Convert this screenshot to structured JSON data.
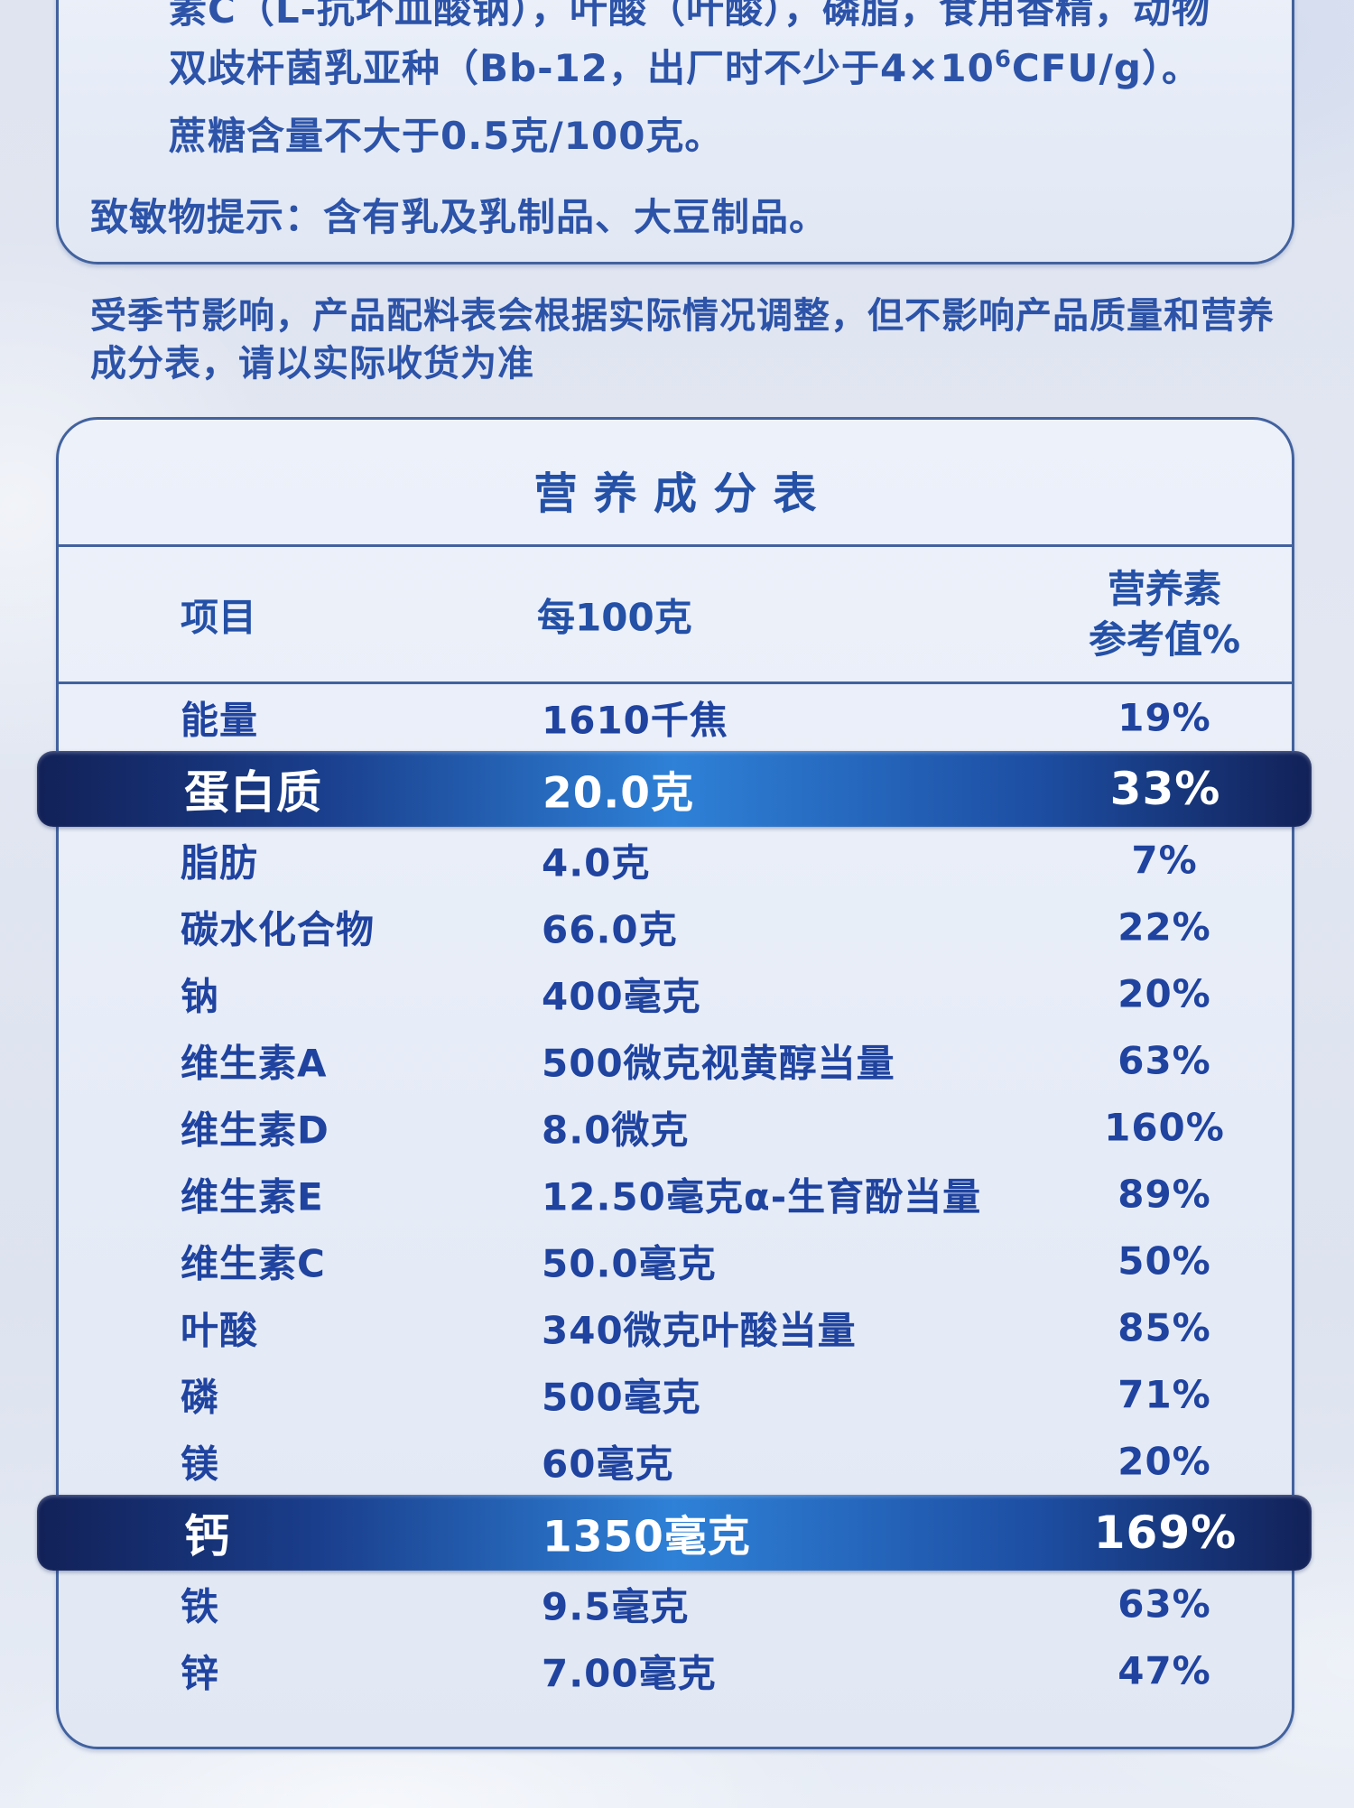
{
  "ingredients_card": {
    "line1": "素C（L-抗坏血酸钠），叶酸（叶酸），磷脂，食用香精，动物",
    "line2_pre": "双歧杆菌乳亚种（Bb-12，出厂时不少于4×10",
    "line2_sup": "6",
    "line2_post": "CFU/g）。",
    "line3": "蔗糖含量不大于0.5克/100克。",
    "allergen": "致敏物提示：含有乳及乳制品、大豆制品。"
  },
  "note": {
    "lines": [
      "受季节影响，产品配料表会根据实际情况调整，但不影响产品质量和营养",
      "成分表，请以实际收货为准"
    ]
  },
  "nutrition": {
    "title": "营养成分表",
    "header": {
      "item": "项目",
      "per100g": "每100克",
      "nrv_line1": "营养素",
      "nrv_line2": "参考值%"
    },
    "rows": [
      {
        "item": "能量",
        "amount": "1610千焦",
        "nrv": "19%",
        "highlight": false
      },
      {
        "item": "蛋白质",
        "amount": "20.0克",
        "nrv": "33%",
        "highlight": true
      },
      {
        "item": "脂肪",
        "amount": "4.0克",
        "nrv": "7%",
        "highlight": false
      },
      {
        "item": "碳水化合物",
        "amount": "66.0克",
        "nrv": "22%",
        "highlight": false
      },
      {
        "item": "钠",
        "amount": "400毫克",
        "nrv": "20%",
        "highlight": false
      },
      {
        "item": "维生素A",
        "amount": "500微克视黄醇当量",
        "nrv": "63%",
        "highlight": false
      },
      {
        "item": "维生素D",
        "amount": "8.0微克",
        "nrv": "160%",
        "highlight": false
      },
      {
        "item": "维生素E",
        "amount": "12.50毫克α-生育酚当量",
        "nrv": "89%",
        "highlight": false
      },
      {
        "item": "维生素C",
        "amount": "50.0毫克",
        "nrv": "50%",
        "highlight": false
      },
      {
        "item": "叶酸",
        "amount": "340微克叶酸当量",
        "nrv": "85%",
        "highlight": false
      },
      {
        "item": "磷",
        "amount": "500毫克",
        "nrv": "71%",
        "highlight": false
      },
      {
        "item": "镁",
        "amount": "60毫克",
        "nrv": "20%",
        "highlight": false
      },
      {
        "item": "钙",
        "amount": "1350毫克",
        "nrv": "169%",
        "highlight": true
      },
      {
        "item": "铁",
        "amount": "9.5毫克",
        "nrv": "63%",
        "highlight": false
      },
      {
        "item": "锌",
        "amount": "7.00毫克",
        "nrv": "47%",
        "highlight": false
      }
    ]
  },
  "colors": {
    "text_blue": "#2c53a8",
    "table_text_blue": "#1f439f",
    "border_blue": "#42629e",
    "highlight_dark": "#122158",
    "highlight_bright": "#2e81d7",
    "highlight_text": "#ffffff",
    "page_bg": "#e2e7f2",
    "card_bg": "#e8edf8"
  }
}
